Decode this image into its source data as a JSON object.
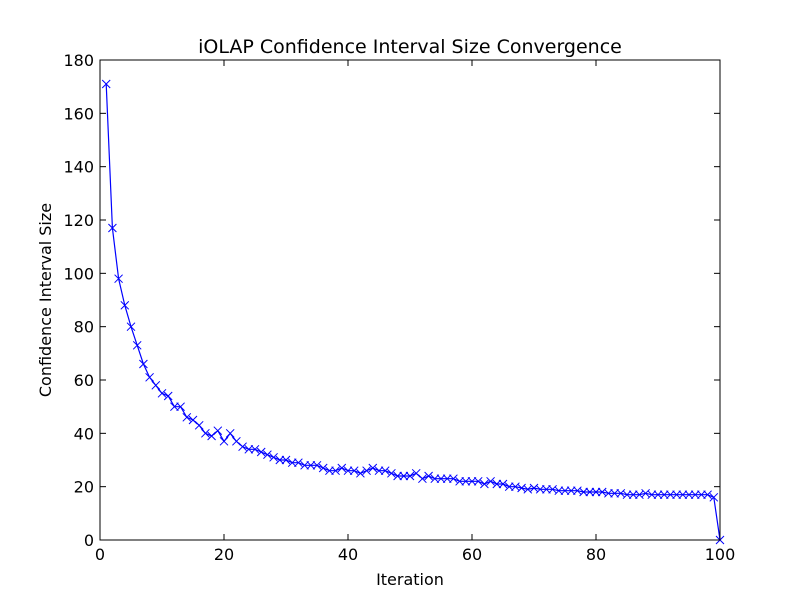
{
  "chart_data": {
    "type": "line",
    "title": "iOLAP Confidence Interval Size Convergence",
    "xlabel": "Iteration",
    "ylabel": "Confidence Interval Size",
    "xlim": [
      0,
      100
    ],
    "ylim": [
      0,
      180
    ],
    "xticks": [
      "0",
      "20",
      "40",
      "60",
      "80",
      "100"
    ],
    "yticks": [
      "0",
      "20",
      "40",
      "60",
      "80",
      "100",
      "120",
      "140",
      "160",
      "180"
    ],
    "grid": false,
    "marker": "x",
    "color": "#0000ff",
    "x": [
      1,
      2,
      3,
      4,
      5,
      6,
      7,
      8,
      9,
      10,
      11,
      12,
      13,
      14,
      15,
      16,
      17,
      18,
      19,
      20,
      21,
      22,
      23,
      24,
      25,
      26,
      27,
      28,
      29,
      30,
      31,
      32,
      33,
      34,
      35,
      36,
      37,
      38,
      39,
      40,
      41,
      42,
      43,
      44,
      45,
      46,
      47,
      48,
      49,
      50,
      51,
      52,
      53,
      54,
      55,
      56,
      57,
      58,
      59,
      60,
      61,
      62,
      63,
      64,
      65,
      66,
      67,
      68,
      69,
      70,
      71,
      72,
      73,
      74,
      75,
      76,
      77,
      78,
      79,
      80,
      81,
      82,
      83,
      84,
      85,
      86,
      87,
      88,
      89,
      90,
      91,
      92,
      93,
      94,
      95,
      96,
      97,
      98,
      99,
      100
    ],
    "y": [
      171,
      117,
      98,
      88,
      80,
      73,
      66,
      61,
      58,
      55,
      54,
      50,
      50,
      46,
      45,
      43,
      40,
      39,
      41,
      37,
      40,
      37,
      35,
      34,
      34,
      33,
      32,
      31,
      30,
      30,
      29,
      29,
      28,
      28,
      28,
      27,
      26,
      26,
      27,
      26,
      26,
      25,
      26,
      27,
      26,
      26,
      25,
      24,
      24,
      24,
      25,
      23,
      24,
      23,
      23,
      23,
      23,
      22,
      22,
      22,
      22,
      21,
      22,
      21,
      21,
      20,
      20,
      19.5,
      19,
      19.5,
      19,
      19,
      19,
      18.5,
      18.5,
      18.5,
      18.5,
      18,
      18,
      18,
      18,
      17.5,
      17.5,
      17.5,
      17,
      17,
      17,
      17.5,
      17,
      17,
      17,
      17,
      17,
      17,
      17,
      17,
      17,
      17,
      16,
      0
    ]
  }
}
